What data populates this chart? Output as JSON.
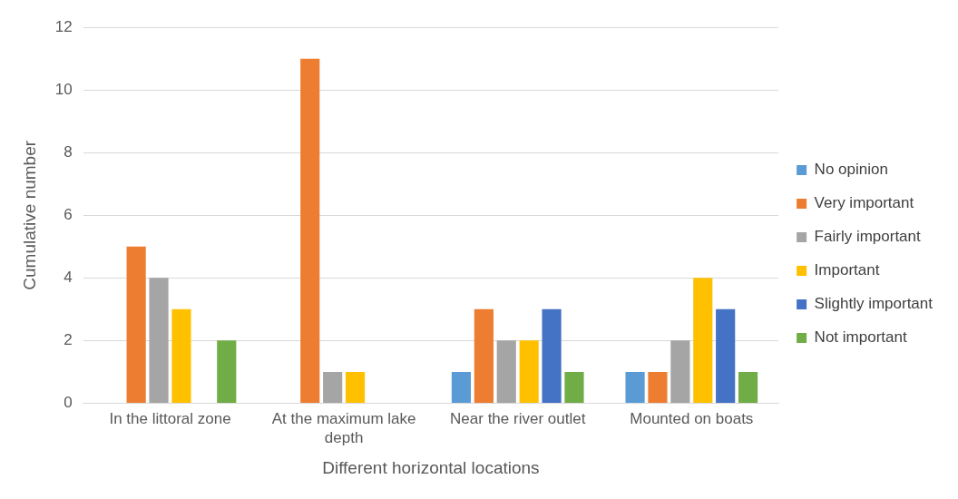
{
  "chart_data": {
    "type": "bar",
    "xlabel": "Different horizontal locations",
    "ylabel": "Cumulative number",
    "categories": [
      "In the littoral zone",
      "At the maximum lake depth",
      "Near the river outlet",
      "Mounted on boats"
    ],
    "series": [
      {
        "name": "No opinion",
        "color": "#5b9bd5",
        "values": [
          0,
          0,
          1,
          1
        ]
      },
      {
        "name": "Very important",
        "color": "#ed7d31",
        "values": [
          5,
          11,
          3,
          1
        ]
      },
      {
        "name": "Fairly important",
        "color": "#a5a5a5",
        "values": [
          4,
          1,
          2,
          2
        ]
      },
      {
        "name": "Important",
        "color": "#ffc000",
        "values": [
          3,
          1,
          2,
          4
        ]
      },
      {
        "name": "Slightly important",
        "color": "#4472c4",
        "values": [
          0,
          0,
          3,
          3
        ]
      },
      {
        "name": "Not important",
        "color": "#70ad47",
        "values": [
          2,
          0,
          1,
          1
        ]
      }
    ],
    "ylim": [
      0,
      12
    ],
    "yticks": [
      0,
      2,
      4,
      6,
      8,
      10,
      12
    ],
    "grid": "y",
    "legend": "right"
  }
}
